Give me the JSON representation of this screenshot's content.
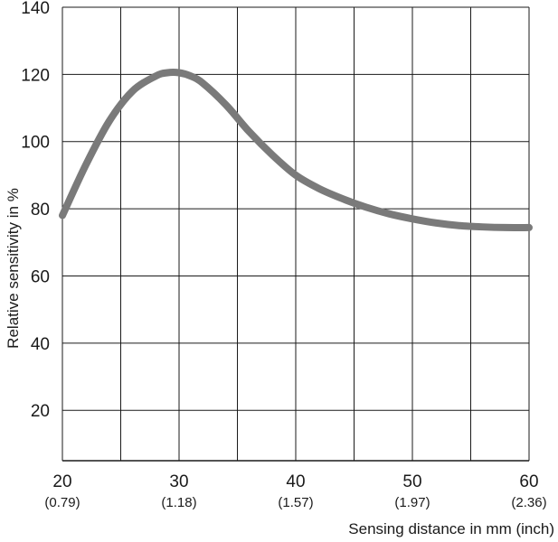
{
  "chart_data": {
    "type": "line",
    "xlabel": "Sensing distance in mm (inch)",
    "ylabel": "Relative sensitivity in %",
    "xlim": [
      20,
      60
    ],
    "ylim": [
      5,
      140
    ],
    "x_ticks": [
      {
        "value": 20,
        "label": "20",
        "sublabel": "(0.79)"
      },
      {
        "value": 30,
        "label": "30",
        "sublabel": "(1.18)"
      },
      {
        "value": 40,
        "label": "40",
        "sublabel": "(1.57)"
      },
      {
        "value": 50,
        "label": "50",
        "sublabel": "(1.97)"
      },
      {
        "value": 60,
        "label": "60",
        "sublabel": "(2.36)"
      }
    ],
    "x_grid": [
      20,
      25,
      30,
      35,
      40,
      45,
      50,
      55,
      60
    ],
    "y_ticks": [
      20,
      40,
      60,
      80,
      100,
      120,
      140
    ],
    "y_grid": [
      20,
      40,
      60,
      80,
      100,
      120,
      140
    ],
    "grid": true,
    "series": [
      {
        "color": "#7a7a7a",
        "x": [
          20,
          22,
          24,
          26,
          28,
          29,
          30,
          31,
          32,
          34,
          36,
          38,
          40,
          42,
          44,
          46,
          48,
          50,
          52,
          54,
          56,
          58,
          60
        ],
        "y": [
          78,
          93,
          106,
          115,
          119.5,
          120.5,
          120.5,
          119.5,
          117.5,
          111,
          103,
          96,
          90,
          86,
          83,
          80.5,
          78.5,
          77,
          75.8,
          75,
          74.6,
          74.4,
          74.4
        ]
      }
    ]
  }
}
